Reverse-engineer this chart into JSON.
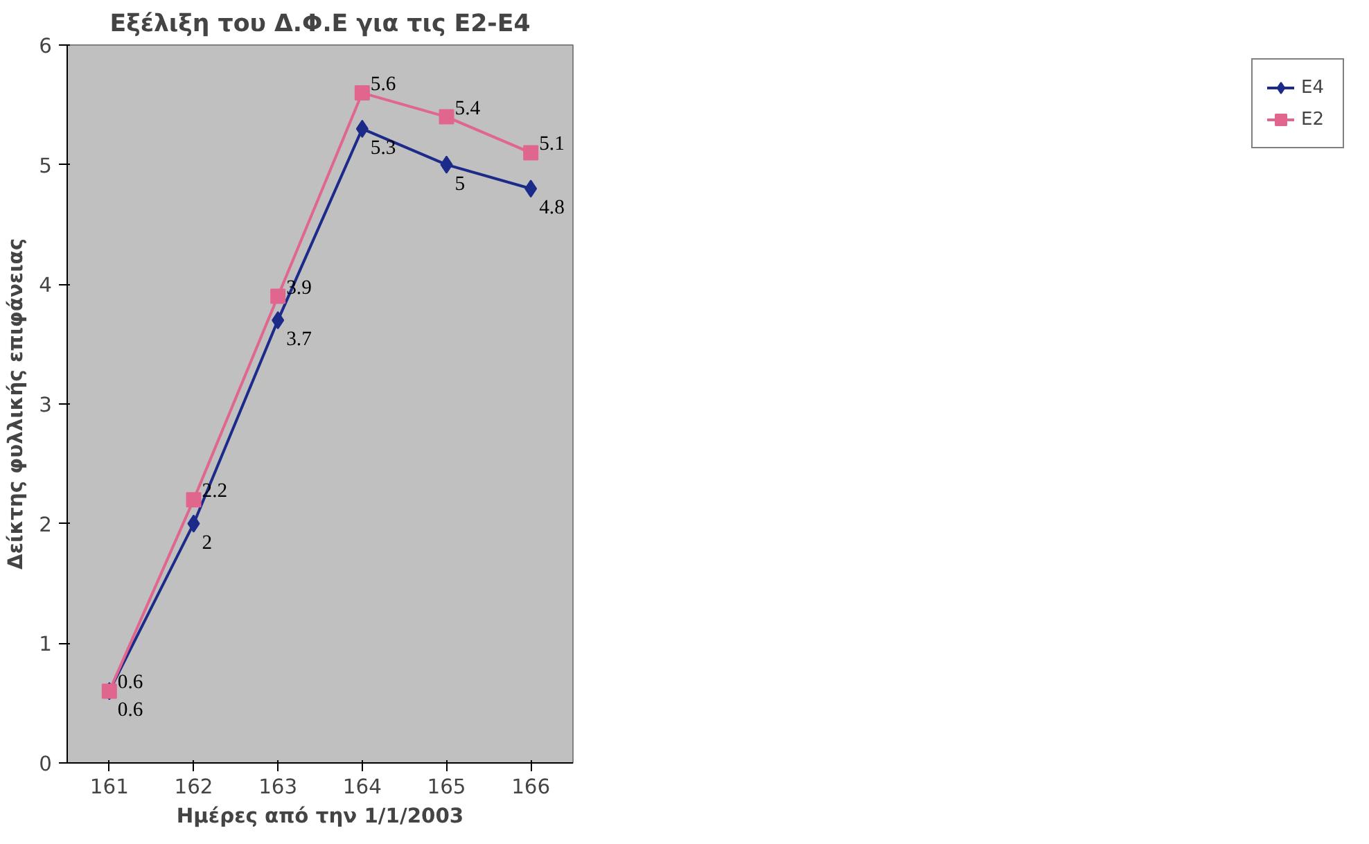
{
  "chart_data": {
    "type": "line",
    "title": "Εξέλιξη του Δ.Φ.Ε για τις Ε2-Ε4",
    "xlabel": "Ημέρες από την 1/1/2003",
    "ylabel": "Δείκτης φυλλικής επιφάνειας",
    "categories": [
      "161",
      "162",
      "163",
      "164",
      "165",
      "166"
    ],
    "series": [
      {
        "name": "E4",
        "color": "#1c2a8a",
        "marker": "diamond",
        "values": [
          0.6,
          2,
          3.7,
          5.3,
          5,
          4.8
        ]
      },
      {
        "name": "E2",
        "color": "#e0668e",
        "marker": "square",
        "values": [
          0.6,
          2.2,
          3.9,
          5.6,
          5.4,
          5.1
        ]
      }
    ],
    "ylim": [
      0,
      6
    ],
    "yticks": [
      0,
      1,
      2,
      3,
      4,
      5,
      6
    ],
    "grid": false,
    "legend": "right",
    "data_labels": true
  }
}
